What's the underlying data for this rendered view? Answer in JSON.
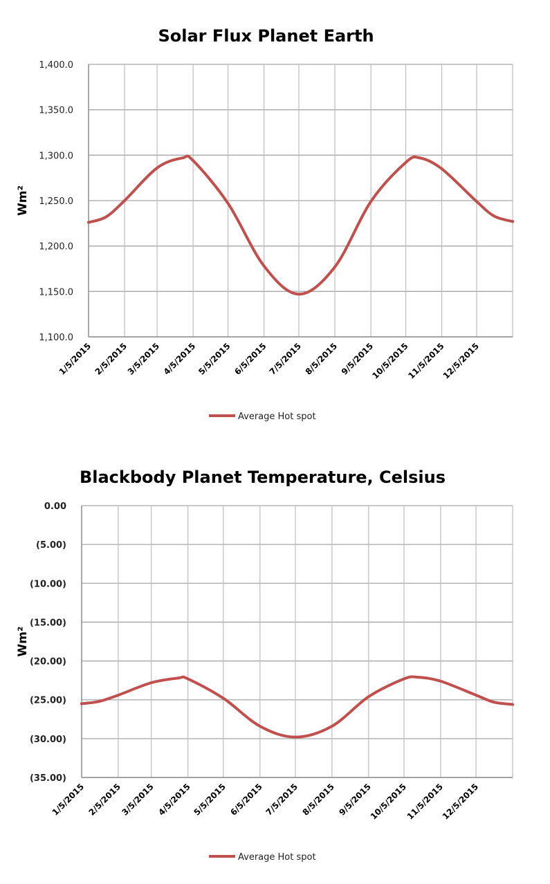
{
  "chart_data": [
    {
      "type": "line",
      "title": "Solar Flux Planet Earth",
      "ylabel": "Wm²",
      "xlabel": "",
      "x_type": "date",
      "xlim": [
        "2015-01-05",
        "2016-01-05"
      ],
      "x_ticks": [
        "2015-01-05",
        "2015-02-05",
        "2015-03-05",
        "2015-04-05",
        "2015-05-05",
        "2015-06-05",
        "2015-07-05",
        "2015-08-05",
        "2015-09-05",
        "2015-10-05",
        "2015-11-05",
        "2015-12-05"
      ],
      "x_tick_labels": [
        "1/5/2015",
        "2/5/2015",
        "3/5/2015",
        "4/5/2015",
        "5/5/2015",
        "6/5/2015",
        "7/5/2015",
        "8/5/2015",
        "9/5/2015",
        "10/5/2015",
        "11/5/2015",
        "12/5/2015"
      ],
      "ylim": [
        1100,
        1400
      ],
      "y_ticks": [
        1100,
        1150,
        1200,
        1250,
        1300,
        1350,
        1400
      ],
      "y_tick_labels": [
        "1,100.0",
        "1,150.0",
        "1,200.0",
        "1,250.0",
        "1,300.0",
        "1,350.0",
        "1,400.0"
      ],
      "y_tick_colors": [
        "#222222",
        "#222222",
        "#222222",
        "#222222",
        "#222222",
        "#222222",
        "#222222"
      ],
      "grid": true,
      "legend": "bottom",
      "series": [
        {
          "name": "Average Hot spot",
          "color": "#c0504d",
          "x": [
            "2015-01-05",
            "2015-01-20",
            "2015-02-05",
            "2015-03-05",
            "2015-03-27",
            "2015-04-05",
            "2015-05-05",
            "2015-06-05",
            "2015-07-05",
            "2015-08-05",
            "2015-09-05",
            "2015-10-05",
            "2015-10-17",
            "2015-11-05",
            "2015-12-05",
            "2015-12-20",
            "2016-01-05"
          ],
          "y": [
            1226,
            1232,
            1250,
            1286,
            1297,
            1294,
            1247,
            1178,
            1147,
            1177,
            1249,
            1292,
            1297,
            1285,
            1249,
            1233,
            1227
          ]
        }
      ]
    },
    {
      "type": "line",
      "title": "Blackbody Planet Temperature, Celsius",
      "ylabel": "Wm²",
      "xlabel": "",
      "x_type": "date",
      "xlim": [
        "2015-01-05",
        "2016-01-05"
      ],
      "x_ticks": [
        "2015-01-05",
        "2015-02-05",
        "2015-03-05",
        "2015-04-05",
        "2015-05-05",
        "2015-06-05",
        "2015-07-05",
        "2015-08-05",
        "2015-09-05",
        "2015-10-05",
        "2015-11-05",
        "2015-12-05"
      ],
      "x_tick_labels": [
        "1/5/2015",
        "2/5/2015",
        "3/5/2015",
        "4/5/2015",
        "5/5/2015",
        "6/5/2015",
        "7/5/2015",
        "8/5/2015",
        "9/5/2015",
        "10/5/2015",
        "11/5/2015",
        "12/5/2015"
      ],
      "ylim": [
        -35,
        0
      ],
      "y_ticks": [
        -35,
        -30,
        -25,
        -20,
        -15,
        -10,
        -5,
        0
      ],
      "y_tick_labels": [
        "(35.00)",
        "(30.00)",
        "(25.00)",
        "(20.00)",
        "(15.00)",
        "(10.00)",
        "(5.00)",
        "0.00"
      ],
      "y_tick_colors": [
        "#c00000",
        "#c00000",
        "#c00000",
        "#c00000",
        "#c00000",
        "#c00000",
        "#c00000",
        "#000000"
      ],
      "grid": true,
      "legend": "bottom",
      "series": [
        {
          "name": "Average Hot spot",
          "color": "#c0504d",
          "x": [
            "2015-01-05",
            "2015-01-20",
            "2015-02-05",
            "2015-03-05",
            "2015-03-28",
            "2015-04-05",
            "2015-05-05",
            "2015-06-05",
            "2015-07-05",
            "2015-08-05",
            "2015-09-05",
            "2015-10-05",
            "2015-10-17",
            "2015-11-05",
            "2015-12-05",
            "2015-12-20",
            "2016-01-05"
          ],
          "y": [
            -25.5,
            -25.2,
            -24.4,
            -22.8,
            -22.2,
            -22.3,
            -24.8,
            -28.4,
            -29.8,
            -28.4,
            -24.6,
            -22.3,
            -22.1,
            -22.6,
            -24.4,
            -25.3,
            -25.6
          ]
        }
      ]
    }
  ]
}
